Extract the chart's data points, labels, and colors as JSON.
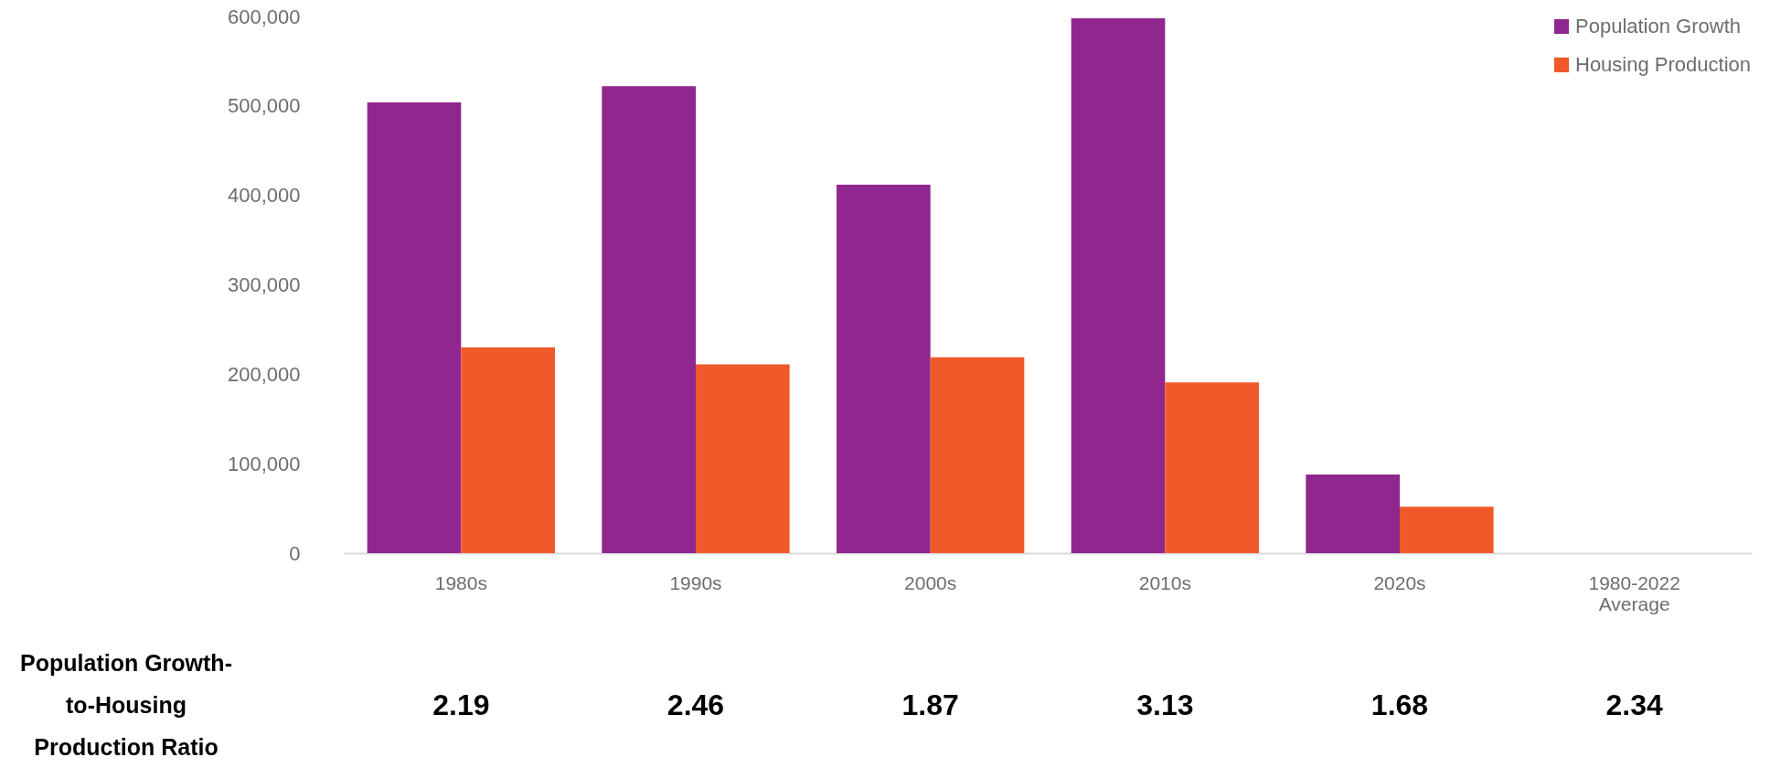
{
  "chart_data": {
    "type": "bar",
    "categories": [
      "1980s",
      "1990s",
      "2000s",
      "2010s",
      "2020s",
      "1980-2022 Average"
    ],
    "series": [
      {
        "name": "Population Growth",
        "color": "#90278e",
        "values": [
          504000,
          522000,
          412000,
          598000,
          88000,
          null
        ]
      },
      {
        "name": "Housing Production",
        "color": "#f05a2b",
        "values": [
          230000,
          211000,
          219000,
          191000,
          52000,
          null
        ]
      }
    ],
    "ylim": [
      0,
      600000
    ],
    "yticks": [
      {
        "value": 0,
        "label": "0"
      },
      {
        "value": 100000,
        "label": "100,000"
      },
      {
        "value": 200000,
        "label": "200,000"
      },
      {
        "value": 300000,
        "label": "300,000"
      },
      {
        "value": 400000,
        "label": "400,000"
      },
      {
        "value": 500000,
        "label": "500,000"
      },
      {
        "value": 600000,
        "label": "600,000"
      }
    ],
    "grid": false,
    "legend": "top right",
    "annotations": [
      "Population Growth-to-Housing Production Ratio",
      "2.19",
      "2.46",
      "1.87",
      "3.13",
      "1.68",
      "2.34"
    ]
  }
}
